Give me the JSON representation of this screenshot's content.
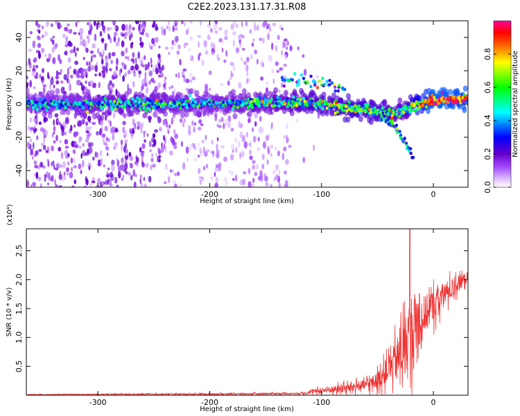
{
  "title": "C2E2.2023.131.17.31.R08",
  "chart_data": [
    {
      "type": "heatmap",
      "name": "spectrogram",
      "xlabel": "Height of straight line (km)",
      "ylabel": "Frequency (Hz)",
      "xlim": [
        -364,
        31
      ],
      "ylim": [
        -50,
        50
      ],
      "x_ticks": [
        -300,
        -200,
        -100,
        0
      ],
      "y_ticks": [
        -40,
        -20,
        0,
        20,
        40
      ],
      "colorbar": {
        "label": "Normalized spectral amplitude",
        "range": [
          0,
          1
        ],
        "ticks": [
          "0.0",
          "0.2",
          "0.4",
          "0.6",
          "0.8"
        ],
        "colors": [
          "#ffffff",
          "#e6ccff",
          "#9933ff",
          "#6600cc",
          "#0000ff",
          "#00ffff",
          "#00ff00",
          "#ffff00",
          "#ff8000",
          "#ff0000",
          "#ff00aa"
        ]
      },
      "ridge": {
        "x": [
          -364,
          -280,
          -200,
          -130,
          -110,
          -90,
          -70,
          -50,
          -35,
          -25,
          -15,
          0,
          31
        ],
        "frequency": [
          0,
          0,
          0,
          1,
          1,
          -1,
          -3,
          -5,
          -6,
          -4,
          0,
          2,
          3
        ],
        "amplitude": [
          0.35,
          0.45,
          0.4,
          0.5,
          0.55,
          0.55,
          0.6,
          0.55,
          0.55,
          0.5,
          0.7,
          0.9,
          0.85
        ]
      },
      "branch": {
        "x": [
          -45,
          -35,
          -28,
          -22,
          -18
        ],
        "frequency": [
          -8,
          -14,
          -20,
          -26,
          -32
        ]
      },
      "upper_branch": {
        "x": [
          -135,
          -120,
          -100,
          -90,
          -80
        ],
        "frequency": [
          14,
          14,
          13,
          11,
          9
        ]
      }
    },
    {
      "type": "line",
      "name": "snr",
      "xlabel": "Height of straight line (km)",
      "ylabel": "SNR (10 * v/v)",
      "multiplier": "(x10⁴)",
      "xlim": [
        -364,
        31
      ],
      "ylim": [
        0,
        2.88
      ],
      "x_ticks": [
        -300,
        -200,
        -100,
        0
      ],
      "y_ticks": [
        "0.5",
        "1.0",
        "1.5",
        "2.0",
        "2.5"
      ],
      "color": "#ee3333",
      "envelope": {
        "x": [
          -364,
          -200,
          -120,
          -100,
          -80,
          -60,
          -50,
          -40,
          -30,
          -25,
          -20,
          -15,
          -10,
          0,
          10,
          20,
          31
        ],
        "mean": [
          0.01,
          0.02,
          0.03,
          0.08,
          0.12,
          0.18,
          0.25,
          0.45,
          0.7,
          0.85,
          1.0,
          1.2,
          1.35,
          1.55,
          1.75,
          1.9,
          2.05
        ],
        "spread": [
          0.01,
          0.02,
          0.02,
          0.08,
          0.12,
          0.15,
          0.25,
          0.35,
          0.7,
          0.9,
          1.3,
          0.8,
          0.6,
          0.45,
          0.35,
          0.25,
          0.15
        ]
      },
      "peak": {
        "x": -21,
        "y": 2.88
      }
    }
  ]
}
